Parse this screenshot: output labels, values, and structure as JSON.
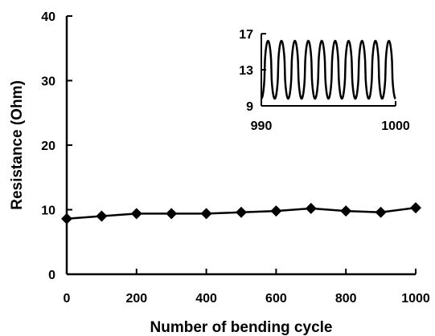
{
  "chart_data": {
    "type": "line",
    "xlabel": "Number of bending cycle",
    "ylabel": "Resistance (Ohm)",
    "xlim": [
      0,
      1000
    ],
    "ylim": [
      0,
      40
    ],
    "xticks": [
      "0",
      "200",
      "400",
      "600",
      "800",
      "1000"
    ],
    "yticks": [
      "0",
      "10",
      "20",
      "30",
      "40"
    ],
    "x": [
      0,
      100,
      200,
      300,
      400,
      500,
      600,
      700,
      800,
      900,
      1000
    ],
    "y": [
      8.6,
      9.0,
      9.4,
      9.4,
      9.4,
      9.6,
      9.8,
      10.2,
      9.8,
      9.6,
      10.3
    ],
    "marker": "diamond",
    "color": "#000000",
    "grid": false,
    "inset": {
      "type": "line",
      "xlim": [
        990,
        1000
      ],
      "ylim": [
        9,
        17
      ],
      "xticks": [
        "990",
        "1000"
      ],
      "yticks": [
        "9",
        "13",
        "17"
      ],
      "cycles": 10,
      "min": 9.8,
      "max": 16.2,
      "color": "#000000"
    }
  }
}
